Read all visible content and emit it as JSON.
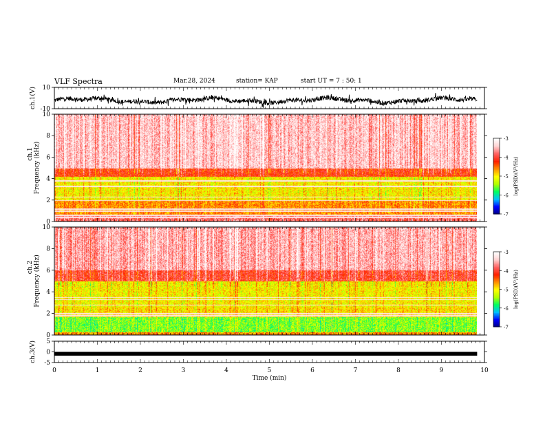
{
  "header": {
    "title": "VLF Spectra",
    "date": "Mar.28, 2024",
    "station": "station= KAP",
    "start": "start UT =  7 : 50: 1"
  },
  "colors": {
    "background": "#ffffff",
    "trace": "#000000",
    "colormap": [
      "#000080",
      "#0000ff",
      "#00bfff",
      "#00ff60",
      "#b0ff00",
      "#ffff00",
      "#ff9000",
      "#ff2000",
      "#ff6060",
      "#ffd0d0",
      "#ffffff"
    ]
  },
  "chart_data": [
    {
      "type": "line",
      "name": "ch1-waveform",
      "ylabel": "ch.1(V)",
      "yticks": [
        "10",
        "-10"
      ],
      "ylim": [
        -10,
        10
      ],
      "xlim": [
        0,
        10
      ],
      "data_extent_min": 9.83,
      "signal": "noisy waveform oscillating roughly between -5 and 1 V with slow drift"
    },
    {
      "type": "heatmap",
      "name": "ch1-spectrogram",
      "ylabel_top": "ch.1",
      "ylabel": "Frequency (kHz)",
      "yticks": [
        "0",
        "2",
        "4",
        "6",
        "8",
        "10"
      ],
      "ylim": [
        0,
        10
      ],
      "xlim": [
        0,
        10
      ],
      "data_extent_min": 9.83,
      "colorbar": {
        "label": "log(PSD)(V²/Hz)",
        "ticks": [
          "-3",
          "-4",
          "-5",
          "-6",
          "-7"
        ],
        "range": [
          -7,
          -3
        ]
      },
      "lines_khz": [
        0.4,
        0.6,
        1.0,
        1.2,
        2.0,
        2.3,
        3.3,
        3.8
      ],
      "band_profile": [
        {
          "from_khz": 0.0,
          "to_khz": 0.7,
          "level": -3.8
        },
        {
          "from_khz": 0.7,
          "to_khz": 2.0,
          "level": -4.6
        },
        {
          "from_khz": 2.0,
          "to_khz": 4.2,
          "level": -5.0
        },
        {
          "from_khz": 4.2,
          "to_khz": 5.0,
          "level": -4.2
        },
        {
          "from_khz": 5.0,
          "to_khz": 10.0,
          "level": -3.4
        }
      ]
    },
    {
      "type": "heatmap",
      "name": "ch2-spectrogram",
      "ylabel_top": "ch.2",
      "ylabel": "Frequency (kHz)",
      "yticks": [
        "0",
        "2",
        "4",
        "6",
        "8",
        "10"
      ],
      "ylim": [
        0,
        10
      ],
      "xlim": [
        0,
        10
      ],
      "data_extent_min": 9.83,
      "colorbar": {
        "label": "log(PSD)(V²/Hz)",
        "ticks": [
          "-3",
          "-4",
          "-5",
          "-6",
          "-7"
        ],
        "range": [
          -7,
          -3
        ]
      },
      "lines_khz": [
        1.8,
        2.0,
        2.8,
        3.3,
        3.5
      ],
      "band_profile": [
        {
          "from_khz": 0.0,
          "to_khz": 0.3,
          "level": -4.6
        },
        {
          "from_khz": 0.3,
          "to_khz": 1.7,
          "level": -5.5
        },
        {
          "from_khz": 1.7,
          "to_khz": 2.6,
          "level": -4.9
        },
        {
          "from_khz": 2.6,
          "to_khz": 5.0,
          "level": -5.0
        },
        {
          "from_khz": 5.0,
          "to_khz": 6.0,
          "level": -4.0
        },
        {
          "from_khz": 6.0,
          "to_khz": 10.0,
          "level": -3.5
        }
      ]
    },
    {
      "type": "line",
      "name": "ch3-waveform",
      "ylabel": "ch.3(V)",
      "yticks": [
        "5",
        "0",
        "-5"
      ],
      "ylim": [
        -5,
        5
      ],
      "xlim": [
        0,
        10
      ],
      "data_extent_min": 9.83,
      "signal": "constant thick band near -1 V"
    }
  ],
  "xaxis": {
    "label": "Time (min)",
    "ticks": [
      "0",
      "1",
      "2",
      "3",
      "4",
      "5",
      "6",
      "7",
      "8",
      "9",
      "10"
    ],
    "range": [
      0,
      10
    ]
  }
}
